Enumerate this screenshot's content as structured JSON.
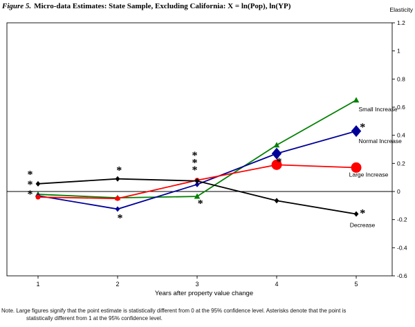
{
  "header": {
    "figure_label": "Figure 5.",
    "figure_title": "Micro-data Estimates: State Sample, Excluding California: X = ln(Pop), ln(YP)"
  },
  "footnote": {
    "line1": "Note. Large figures signify that the point estimate is statistically different from 0 at the 95% confidence level.  Asterisks denote that the point is",
    "line2": "statistically different from 1 at the 95% confidence level."
  },
  "chart_data": {
    "type": "line",
    "title": "Figure 5. Micro-data Estimates: State Sample, Excluding California: X = ln(Pop), ln(YP)",
    "x": [
      1,
      2,
      3,
      4,
      5
    ],
    "xlabel": "Years after property value change",
    "ylabel": "Elasticity",
    "ylim": [
      -0.6,
      1.2
    ],
    "yticks": [
      {
        "v": 1.2,
        "label": "1.2"
      },
      {
        "v": 1.0,
        "label": "1"
      },
      {
        "v": 0.8,
        "label": "0.8"
      },
      {
        "v": 0.6,
        "label": "0.6"
      },
      {
        "v": 0.4,
        "label": "0.4"
      },
      {
        "v": 0.2,
        "label": "0.2"
      },
      {
        "v": 0.0,
        "label": "0"
      },
      {
        "v": -0.2,
        "label": "-0.2"
      },
      {
        "v": -0.4,
        "label": "-0.4"
      },
      {
        "v": -0.6,
        "label": "-0.6"
      }
    ],
    "zero_line": true,
    "legend_position": "inline-labels",
    "grid": false,
    "series": [
      {
        "name": "Small Increase",
        "color": "#008000",
        "marker": "triangle",
        "values": [
          -0.02,
          -0.045,
          -0.035,
          0.33,
          0.65
        ],
        "large_points": [],
        "label_at": {
          "x": 5.03,
          "y": 0.585
        }
      },
      {
        "name": "Normal Increase",
        "color": "#000099",
        "marker": "diamond",
        "values": [
          -0.03,
          -0.125,
          0.05,
          0.27,
          0.43
        ],
        "large_points": [
          4,
          5
        ],
        "label_at": {
          "x": 5.03,
          "y": 0.36
        }
      },
      {
        "name": "Large Increase",
        "color": "#ff0000",
        "marker": "circle",
        "values": [
          -0.04,
          -0.05,
          0.08,
          0.19,
          0.17
        ],
        "large_points": [
          4,
          5
        ],
        "label_at": {
          "x": 4.91,
          "y": 0.12
        }
      },
      {
        "name": "Decrease",
        "color": "#000000",
        "marker": "diamond",
        "values": [
          0.055,
          0.09,
          0.075,
          -0.065,
          -0.16
        ],
        "large_points": [],
        "label_at": {
          "x": 4.92,
          "y": -0.238
        }
      }
    ],
    "asterisks": [
      {
        "x": 0.9,
        "y": 0.135
      },
      {
        "x": 0.9,
        "y": 0.065
      },
      {
        "x": 0.9,
        "y": -0.005
      },
      {
        "x": 2.02,
        "y": 0.165
      },
      {
        "x": 2.03,
        "y": -0.175
      },
      {
        "x": 2.97,
        "y": 0.27
      },
      {
        "x": 2.97,
        "y": 0.218
      },
      {
        "x": 2.97,
        "y": 0.166
      },
      {
        "x": 3.04,
        "y": -0.072
      },
      {
        "x": 4.03,
        "y": 0.226
      },
      {
        "x": 5.08,
        "y": 0.472
      },
      {
        "x": 5.08,
        "y": -0.14
      }
    ]
  }
}
